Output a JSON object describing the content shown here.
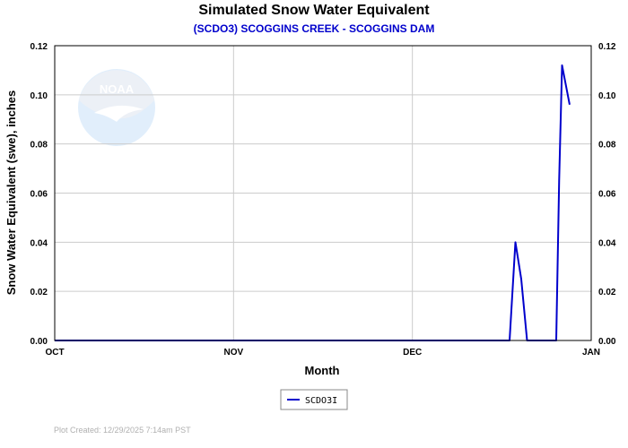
{
  "chart_data": {
    "type": "line",
    "title": "Simulated Snow Water Equivalent",
    "subtitle": "(SCDO3) SCOGGINS CREEK - SCOGGINS DAM",
    "xlabel": "Month",
    "ylabel": "Snow Water Equivalent (swe),  inches",
    "x_tick_labels": [
      "OCT",
      "NOV",
      "DEC",
      "JAN"
    ],
    "xlim": [
      0,
      92
    ],
    "ylim": [
      0,
      0.12
    ],
    "y_ticks": [
      0.0,
      0.02,
      0.04,
      0.06,
      0.08,
      0.1,
      0.12
    ],
    "y_tick_labels": [
      "0.00",
      "0.02",
      "0.04",
      "0.06",
      "0.08",
      "0.10",
      "0.12"
    ],
    "grid": true,
    "legend_position": "bottom-center",
    "series": [
      {
        "name": "SCDO3I",
        "color": "#0000cc",
        "points": [
          [
            0,
            0
          ],
          [
            78,
            0
          ],
          [
            79,
            0.04
          ],
          [
            80,
            0.025
          ],
          [
            81,
            0
          ],
          [
            86,
            0
          ],
          [
            86.5,
            0.065
          ],
          [
            87,
            0.112
          ],
          [
            88.3,
            0.096
          ]
        ]
      }
    ]
  },
  "footnote": "Plot Created:  12/29/2025 7:14am PST",
  "logo": {
    "text": "NOAA"
  },
  "colors": {
    "subtitle": "#0000cc",
    "grid": "#cccccc",
    "series": "#0000cc"
  }
}
